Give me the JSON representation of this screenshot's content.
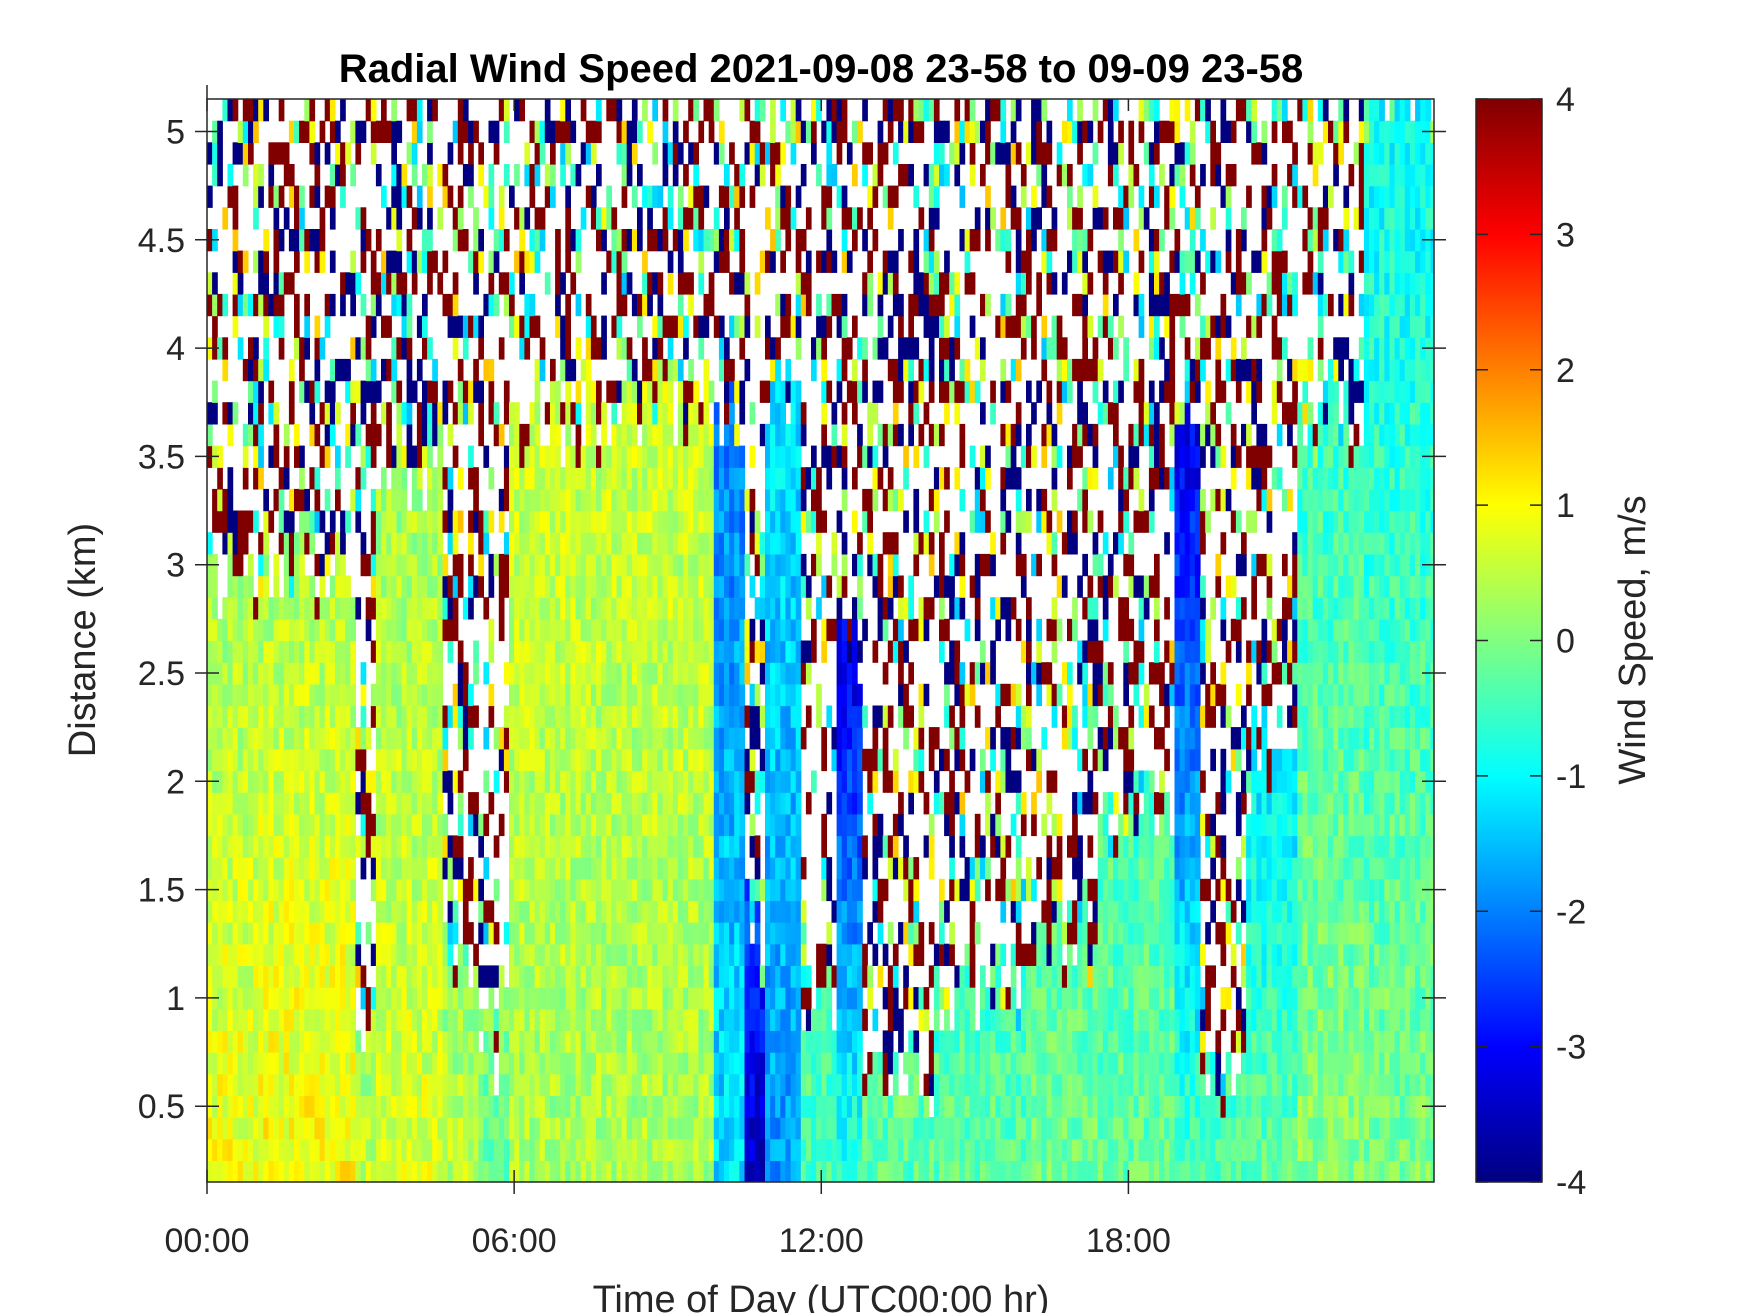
{
  "chart_data": {
    "type": "heatmap",
    "title": "Radial Wind Speed 2021-09-08 23-58 to 09-09 23-58",
    "xlabel": "Time of Day (UTC00:00 hr)",
    "ylabel": "Distance (km)",
    "colorbar_label": "Wind Speed, m/s",
    "colormap": "jet",
    "xlim_hours": [
      0,
      23.97
    ],
    "ylim_km": [
      0.15,
      5.15
    ],
    "clim": [
      -4,
      4
    ],
    "x_ticks": [
      {
        "value": 0,
        "label": "00:00"
      },
      {
        "value": 6,
        "label": "06:00"
      },
      {
        "value": 12,
        "label": "12:00"
      },
      {
        "value": 18,
        "label": "18:00"
      }
    ],
    "y_ticks": [
      {
        "value": 0.5,
        "label": "0.5"
      },
      {
        "value": 1,
        "label": "1"
      },
      {
        "value": 1.5,
        "label": "1.5"
      },
      {
        "value": 2,
        "label": "2"
      },
      {
        "value": 2.5,
        "label": "2.5"
      },
      {
        "value": 3,
        "label": "3"
      },
      {
        "value": 3.5,
        "label": "3.5"
      },
      {
        "value": 4,
        "label": "4"
      },
      {
        "value": 4.5,
        "label": "4.5"
      },
      {
        "value": 5,
        "label": "5"
      }
    ],
    "colorbar_ticks": [
      {
        "value": 4,
        "label": "4"
      },
      {
        "value": 3,
        "label": "3"
      },
      {
        "value": 2,
        "label": "2"
      },
      {
        "value": 1,
        "label": "1"
      },
      {
        "value": 0,
        "label": "0"
      },
      {
        "value": -1,
        "label": "-1"
      },
      {
        "value": -2,
        "label": "-2"
      },
      {
        "value": -3,
        "label": "-3"
      },
      {
        "value": -4,
        "label": "-4"
      }
    ],
    "grid": false,
    "segments": [
      {
        "start_h": 0.0,
        "end_h": 1.0,
        "valid_top_km": 2.95,
        "surface_ms": 0.9,
        "top_ms": 0.3
      },
      {
        "start_h": 1.0,
        "end_h": 2.9,
        "valid_top_km": 3.0,
        "surface_ms": 1.0,
        "top_ms": 0.4
      },
      {
        "start_h": 2.9,
        "end_h": 3.3,
        "valid_top_km": 0.9,
        "surface_ms": 0.6,
        "top_ms": 0.2
      },
      {
        "start_h": 3.3,
        "end_h": 4.6,
        "valid_top_km": 3.4,
        "surface_ms": 0.7,
        "top_ms": 0.3
      },
      {
        "start_h": 4.6,
        "end_h": 5.3,
        "valid_top_km": 1.1,
        "surface_ms": 0.5,
        "top_ms": 0.2
      },
      {
        "start_h": 5.3,
        "end_h": 5.9,
        "valid_top_km": 0.8,
        "surface_ms": -0.3,
        "top_ms": 0.0
      },
      {
        "start_h": 5.9,
        "end_h": 9.9,
        "valid_top_km": 3.7,
        "surface_ms": 0.3,
        "top_ms": 0.6
      },
      {
        "start_h": 9.9,
        "end_h": 10.5,
        "valid_top_km": 3.7,
        "surface_ms": -1.2,
        "top_ms": -2.0
      },
      {
        "start_h": 10.5,
        "end_h": 10.9,
        "valid_top_km": 1.3,
        "surface_ms": -3.6,
        "top_ms": -2.5
      },
      {
        "start_h": 10.9,
        "end_h": 11.6,
        "valid_top_km": 3.8,
        "surface_ms": -1.8,
        "top_ms": -1.2
      },
      {
        "start_h": 11.6,
        "end_h": 12.3,
        "valid_top_km": 0.9,
        "surface_ms": -0.4,
        "top_ms": -0.4
      },
      {
        "start_h": 12.3,
        "end_h": 12.8,
        "valid_top_km": 2.6,
        "surface_ms": -0.6,
        "top_ms": -3.2
      },
      {
        "start_h": 12.8,
        "end_h": 14.2,
        "valid_top_km": 0.6,
        "surface_ms": -0.3,
        "top_ms": -0.3
      },
      {
        "start_h": 14.2,
        "end_h": 16.0,
        "valid_top_km": 1.0,
        "surface_ms": -0.2,
        "top_ms": -0.5
      },
      {
        "start_h": 16.0,
        "end_h": 17.4,
        "valid_top_km": 1.3,
        "surface_ms": -0.1,
        "top_ms": -0.3
      },
      {
        "start_h": 17.4,
        "end_h": 18.9,
        "valid_top_km": 1.8,
        "surface_ms": -0.2,
        "top_ms": -0.4
      },
      {
        "start_h": 18.9,
        "end_h": 19.4,
        "valid_top_km": 3.8,
        "surface_ms": -0.4,
        "top_ms": -3.3
      },
      {
        "start_h": 19.4,
        "end_h": 20.3,
        "valid_top_km": 0.7,
        "surface_ms": -0.3,
        "top_ms": -0.5
      },
      {
        "start_h": 20.3,
        "end_h": 21.3,
        "valid_top_km": 2.1,
        "surface_ms": -0.2,
        "top_ms": -1.2
      },
      {
        "start_h": 21.3,
        "end_h": 22.6,
        "valid_top_km": 3.7,
        "surface_ms": 0.1,
        "top_ms": -0.6
      },
      {
        "start_h": 22.6,
        "end_h": 23.97,
        "valid_top_km": 5.15,
        "surface_ms": 0.0,
        "top_ms": -1.0
      }
    ]
  }
}
